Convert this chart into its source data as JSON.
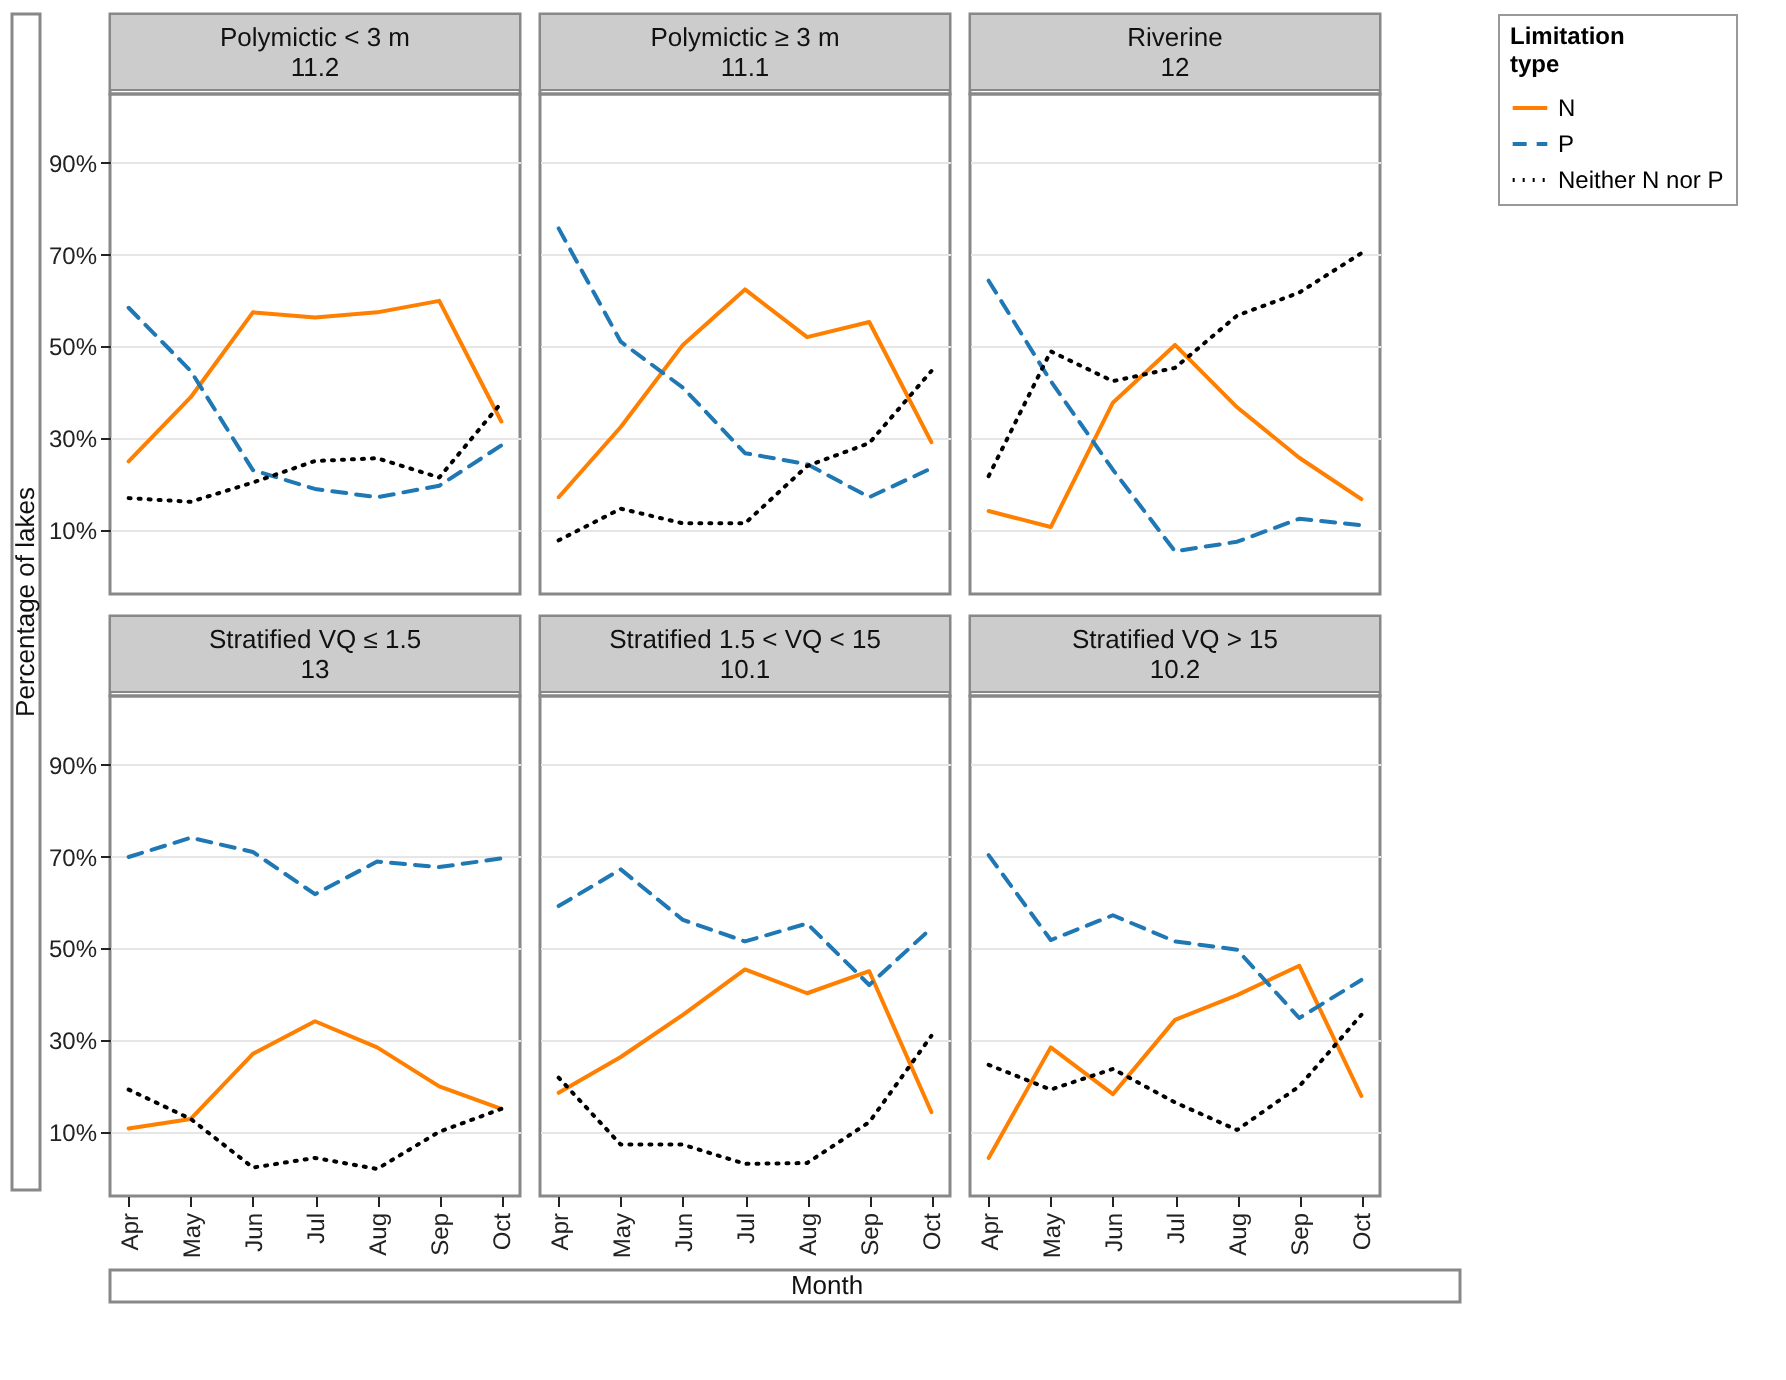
{
  "chart_data": [
    {
      "type": "line",
      "title": "Polymictic < 3 m\n11.2",
      "ylabel": "Percentage of lakes",
      "legend_title": "Limitation\ntype",
      "categories": [
        "Apr",
        "May",
        "Jun",
        "Jul",
        "Aug",
        "Sep",
        "Oct"
      ],
      "series": [
        {
          "name": "N",
          "color": "#ff7f00",
          "line_style": "solid",
          "values": [
            24.9,
            38.9,
            57.4,
            56.3,
            57.4,
            59.9,
            33.6
          ]
        },
        {
          "name": "P",
          "color": "#1f78b4",
          "line_style": "dashed",
          "values": [
            58.4,
            44.6,
            23,
            18.9,
            17.1,
            19.6,
            28.4
          ]
        },
        {
          "name": "Neither N nor P",
          "color": "#000000",
          "line_style": "dotted",
          "values": [
            16.9,
            16.1,
            20.3,
            25,
            25.6,
            21.4,
            37.7
          ]
        }
      ],
      "ylim": [
        -4,
        105
      ],
      "yticks": [
        {
          "value": 10,
          "label": "10%"
        },
        {
          "value": 30,
          "label": "30%"
        },
        {
          "value": 50,
          "label": "50%"
        },
        {
          "value": 70,
          "label": "70%"
        },
        {
          "value": 90,
          "label": "90%"
        }
      ],
      "grid": "y",
      "legend": "right",
      "tick_labels": "y"
    },
    {
      "type": "line",
      "title": "Polymictic ≥ 3 m\n11.1",
      "categories": [
        "Apr",
        "May",
        "Jun",
        "Jul",
        "Aug",
        "Sep",
        "Oct"
      ],
      "series": [
        {
          "name": "N",
          "color": "#ff7f00",
          "line_style": "solid",
          "values": [
            17.1,
            32.4,
            50.3,
            62.4,
            52,
            55.3,
            29.1
          ]
        },
        {
          "name": "P",
          "color": "#1f78b4",
          "line_style": "dashed",
          "values": [
            75.7,
            51,
            41,
            26.7,
            24.3,
            17.1,
            23.4
          ]
        },
        {
          "name": "Neither N nor P",
          "color": "#000000",
          "line_style": "dotted",
          "values": [
            7.7,
            14.6,
            11.4,
            11.4,
            23.9,
            28.9,
            44.6
          ]
        }
      ],
      "ylim": [
        -4,
        105
      ],
      "yticks": [
        {
          "value": 10,
          "label": "10%"
        },
        {
          "value": 30,
          "label": "30%"
        },
        {
          "value": 50,
          "label": "50%"
        },
        {
          "value": 70,
          "label": "70%"
        },
        {
          "value": 90,
          "label": "90%"
        }
      ],
      "grid": "y",
      "legend": "right",
      "tick_labels": false
    },
    {
      "type": "line",
      "title": "Riverine\n12",
      "categories": [
        "Apr",
        "May",
        "Jun",
        "Jul",
        "Aug",
        "Sep",
        "Oct"
      ],
      "series": [
        {
          "name": "N",
          "color": "#ff7f00",
          "line_style": "solid",
          "values": [
            14.1,
            10.6,
            37.7,
            50.3,
            36.7,
            25.7,
            16.7
          ]
        },
        {
          "name": "P",
          "color": "#1f78b4",
          "line_style": "dashed",
          "values": [
            64.3,
            42.4,
            23.1,
            5.3,
            7.4,
            12.4,
            11
          ]
        },
        {
          "name": "Neither N nor P",
          "color": "#000000",
          "line_style": "dotted",
          "values": [
            21.7,
            48.9,
            42.4,
            45.3,
            56.7,
            61.7,
            70.3
          ]
        }
      ],
      "ylim": [
        -4,
        105
      ],
      "yticks": [
        {
          "value": 10,
          "label": "10%"
        },
        {
          "value": 30,
          "label": "30%"
        },
        {
          "value": 50,
          "label": "50%"
        },
        {
          "value": 70,
          "label": "70%"
        },
        {
          "value": 90,
          "label": "90%"
        }
      ],
      "grid": "y",
      "legend": "right",
      "tick_labels": false
    },
    {
      "type": "line",
      "title": "Stratified VQ ≤ 1.5\n13",
      "categories": [
        "Apr",
        "May",
        "Jun",
        "Jul",
        "Aug",
        "Sep",
        "Oct"
      ],
      "series": [
        {
          "name": "N",
          "color": "#ff7f00",
          "line_style": "solid",
          "values": [
            10.7,
            12.8,
            27,
            34.1,
            28.4,
            19.9,
            15
          ]
        },
        {
          "name": "P",
          "color": "#1f78b4",
          "line_style": "dashed",
          "values": [
            69.9,
            74.1,
            71,
            61.8,
            68.9,
            67.7,
            69.6
          ]
        },
        {
          "name": "Neither N nor P",
          "color": "#000000",
          "line_style": "dotted",
          "values": [
            19.2,
            12.8,
            2.2,
            4.3,
            1.9,
            10,
            15
          ]
        }
      ],
      "ylim": [
        -4,
        105
      ],
      "yticks": [
        {
          "value": 10,
          "label": "10%"
        },
        {
          "value": 30,
          "label": "30%"
        },
        {
          "value": 50,
          "label": "50%"
        },
        {
          "value": 70,
          "label": "70%"
        },
        {
          "value": 90,
          "label": "90%"
        }
      ],
      "grid": "y",
      "legend": "right"
    },
    {
      "type": "line",
      "title": "Stratified 1.5 < VQ < 15\n10.1",
      "xlabel": "Month",
      "categories": [
        "Apr",
        "May",
        "Jun",
        "Jul",
        "Aug",
        "Sep",
        "Oct"
      ],
      "series": [
        {
          "name": "N",
          "color": "#ff7f00",
          "line_style": "solid",
          "values": [
            18.5,
            26.3,
            35.5,
            45.4,
            40.2,
            45,
            14.3
          ]
        },
        {
          "name": "P",
          "color": "#1f78b4",
          "line_style": "dashed",
          "values": [
            59.2,
            67.2,
            56.2,
            51.5,
            55.4,
            42,
            54.4
          ]
        },
        {
          "name": "Neither N nor P",
          "color": "#000000",
          "line_style": "dotted",
          "values": [
            21.8,
            7.2,
            7.2,
            3,
            3.2,
            12.1,
            30.9
          ]
        }
      ],
      "ylim": [
        -4,
        105
      ],
      "yticks": [
        {
          "value": 10,
          "label": "10%"
        },
        {
          "value": 30,
          "label": "30%"
        },
        {
          "value": 50,
          "label": "50%"
        },
        {
          "value": 70,
          "label": "70%"
        },
        {
          "value": 90,
          "label": "90%"
        }
      ],
      "grid": "y",
      "legend": "right",
      "tick_labels": "x"
    },
    {
      "type": "line",
      "title": "Stratified VQ > 15\n10.2",
      "categories": [
        "Apr",
        "May",
        "Jun",
        "Jul",
        "Aug",
        "Sep",
        "Oct"
      ],
      "series": [
        {
          "name": "N",
          "color": "#ff7f00",
          "line_style": "solid",
          "values": [
            4.3,
            28.4,
            18.2,
            34.4,
            39.8,
            46.2,
            17.8
          ]
        },
        {
          "name": "P",
          "color": "#1f78b4",
          "line_style": "dashed",
          "values": [
            70.3,
            51.8,
            57.2,
            51.5,
            49.7,
            34.8,
            43.1
          ]
        },
        {
          "name": "Neither N nor P",
          "color": "#000000",
          "line_style": "dotted",
          "values": [
            24.6,
            19.2,
            23.7,
            16.4,
            10.4,
            19.9,
            35.5
          ]
        }
      ],
      "ylim": [
        -4,
        105
      ],
      "yticks": [
        {
          "value": 10,
          "label": "10%"
        },
        {
          "value": 30,
          "label": "30%"
        },
        {
          "value": 50,
          "label": "50%"
        },
        {
          "value": 70,
          "label": "70%"
        },
        {
          "value": 90,
          "label": "90%"
        }
      ],
      "grid": "y",
      "legend": "right",
      "tick_labels": "x"
    }
  ]
}
